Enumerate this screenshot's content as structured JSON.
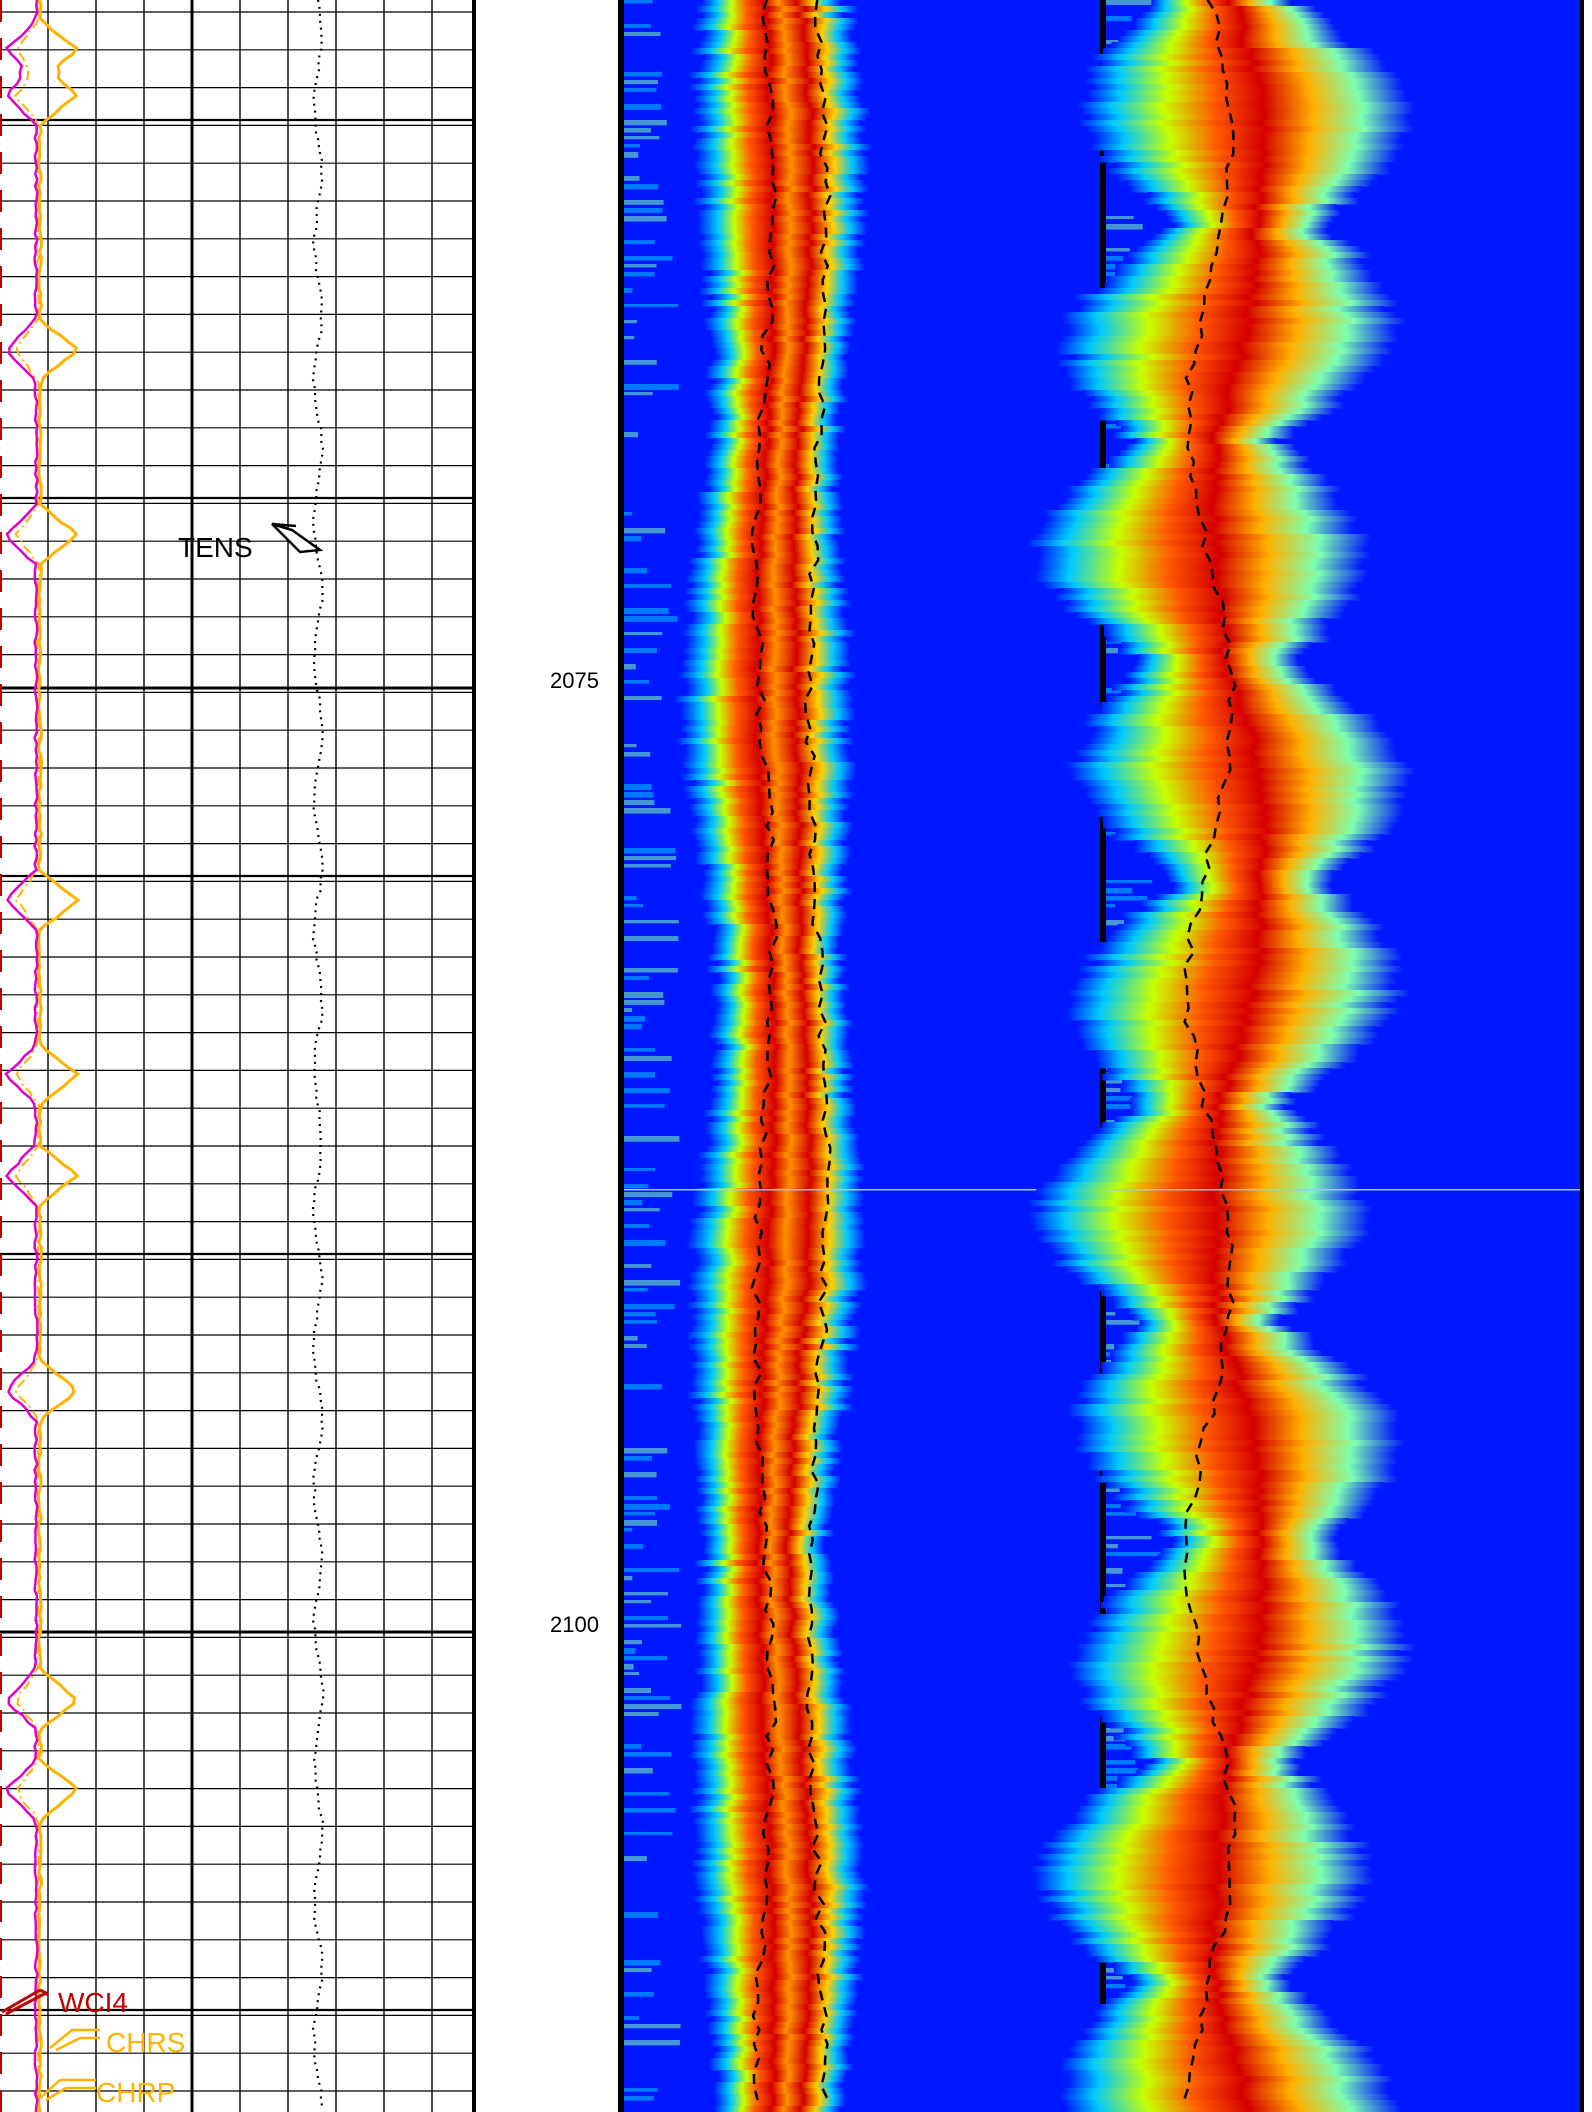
{
  "colors": {
    "grid": "#000000",
    "wci4": "#c00000",
    "chr": "#ffb300",
    "magenta_curve": "#e000c8",
    "tens": "#000000",
    "image_background": "#0018ff",
    "image_palette": [
      "#0018ff",
      "#00c8ff",
      "#7dffb0",
      "#c8ff00",
      "#ffd000",
      "#ff5a00",
      "#d40000"
    ]
  },
  "chart_data": [
    {
      "type": "line",
      "track": "curve-track",
      "depth_ticks": [
        "2075",
        "2100"
      ],
      "ylim": [
        2057,
        2113
      ],
      "grid": true,
      "series": [
        {
          "name": "TENS",
          "color": "#000000",
          "style": "dotted"
        },
        {
          "name": "WCI4",
          "color": "#c00000",
          "style": "solid"
        },
        {
          "name": "CHRS",
          "color": "#ffb300",
          "style": "dash-dot"
        },
        {
          "name": "CHRP",
          "color": "#ffb300",
          "style": "solid"
        }
      ],
      "labels": {
        "tens": "TENS",
        "wci4": "WCI4",
        "chrs": "CHRS",
        "chrp": "CHRP"
      }
    },
    {
      "type": "heatmap",
      "track": "waveform-image-track-1",
      "ylim": [
        2057,
        2113
      ],
      "colormap": "jet"
    },
    {
      "type": "heatmap",
      "track": "waveform-image-track-2",
      "ylim": [
        2057,
        2113
      ],
      "colormap": "jet"
    }
  ]
}
